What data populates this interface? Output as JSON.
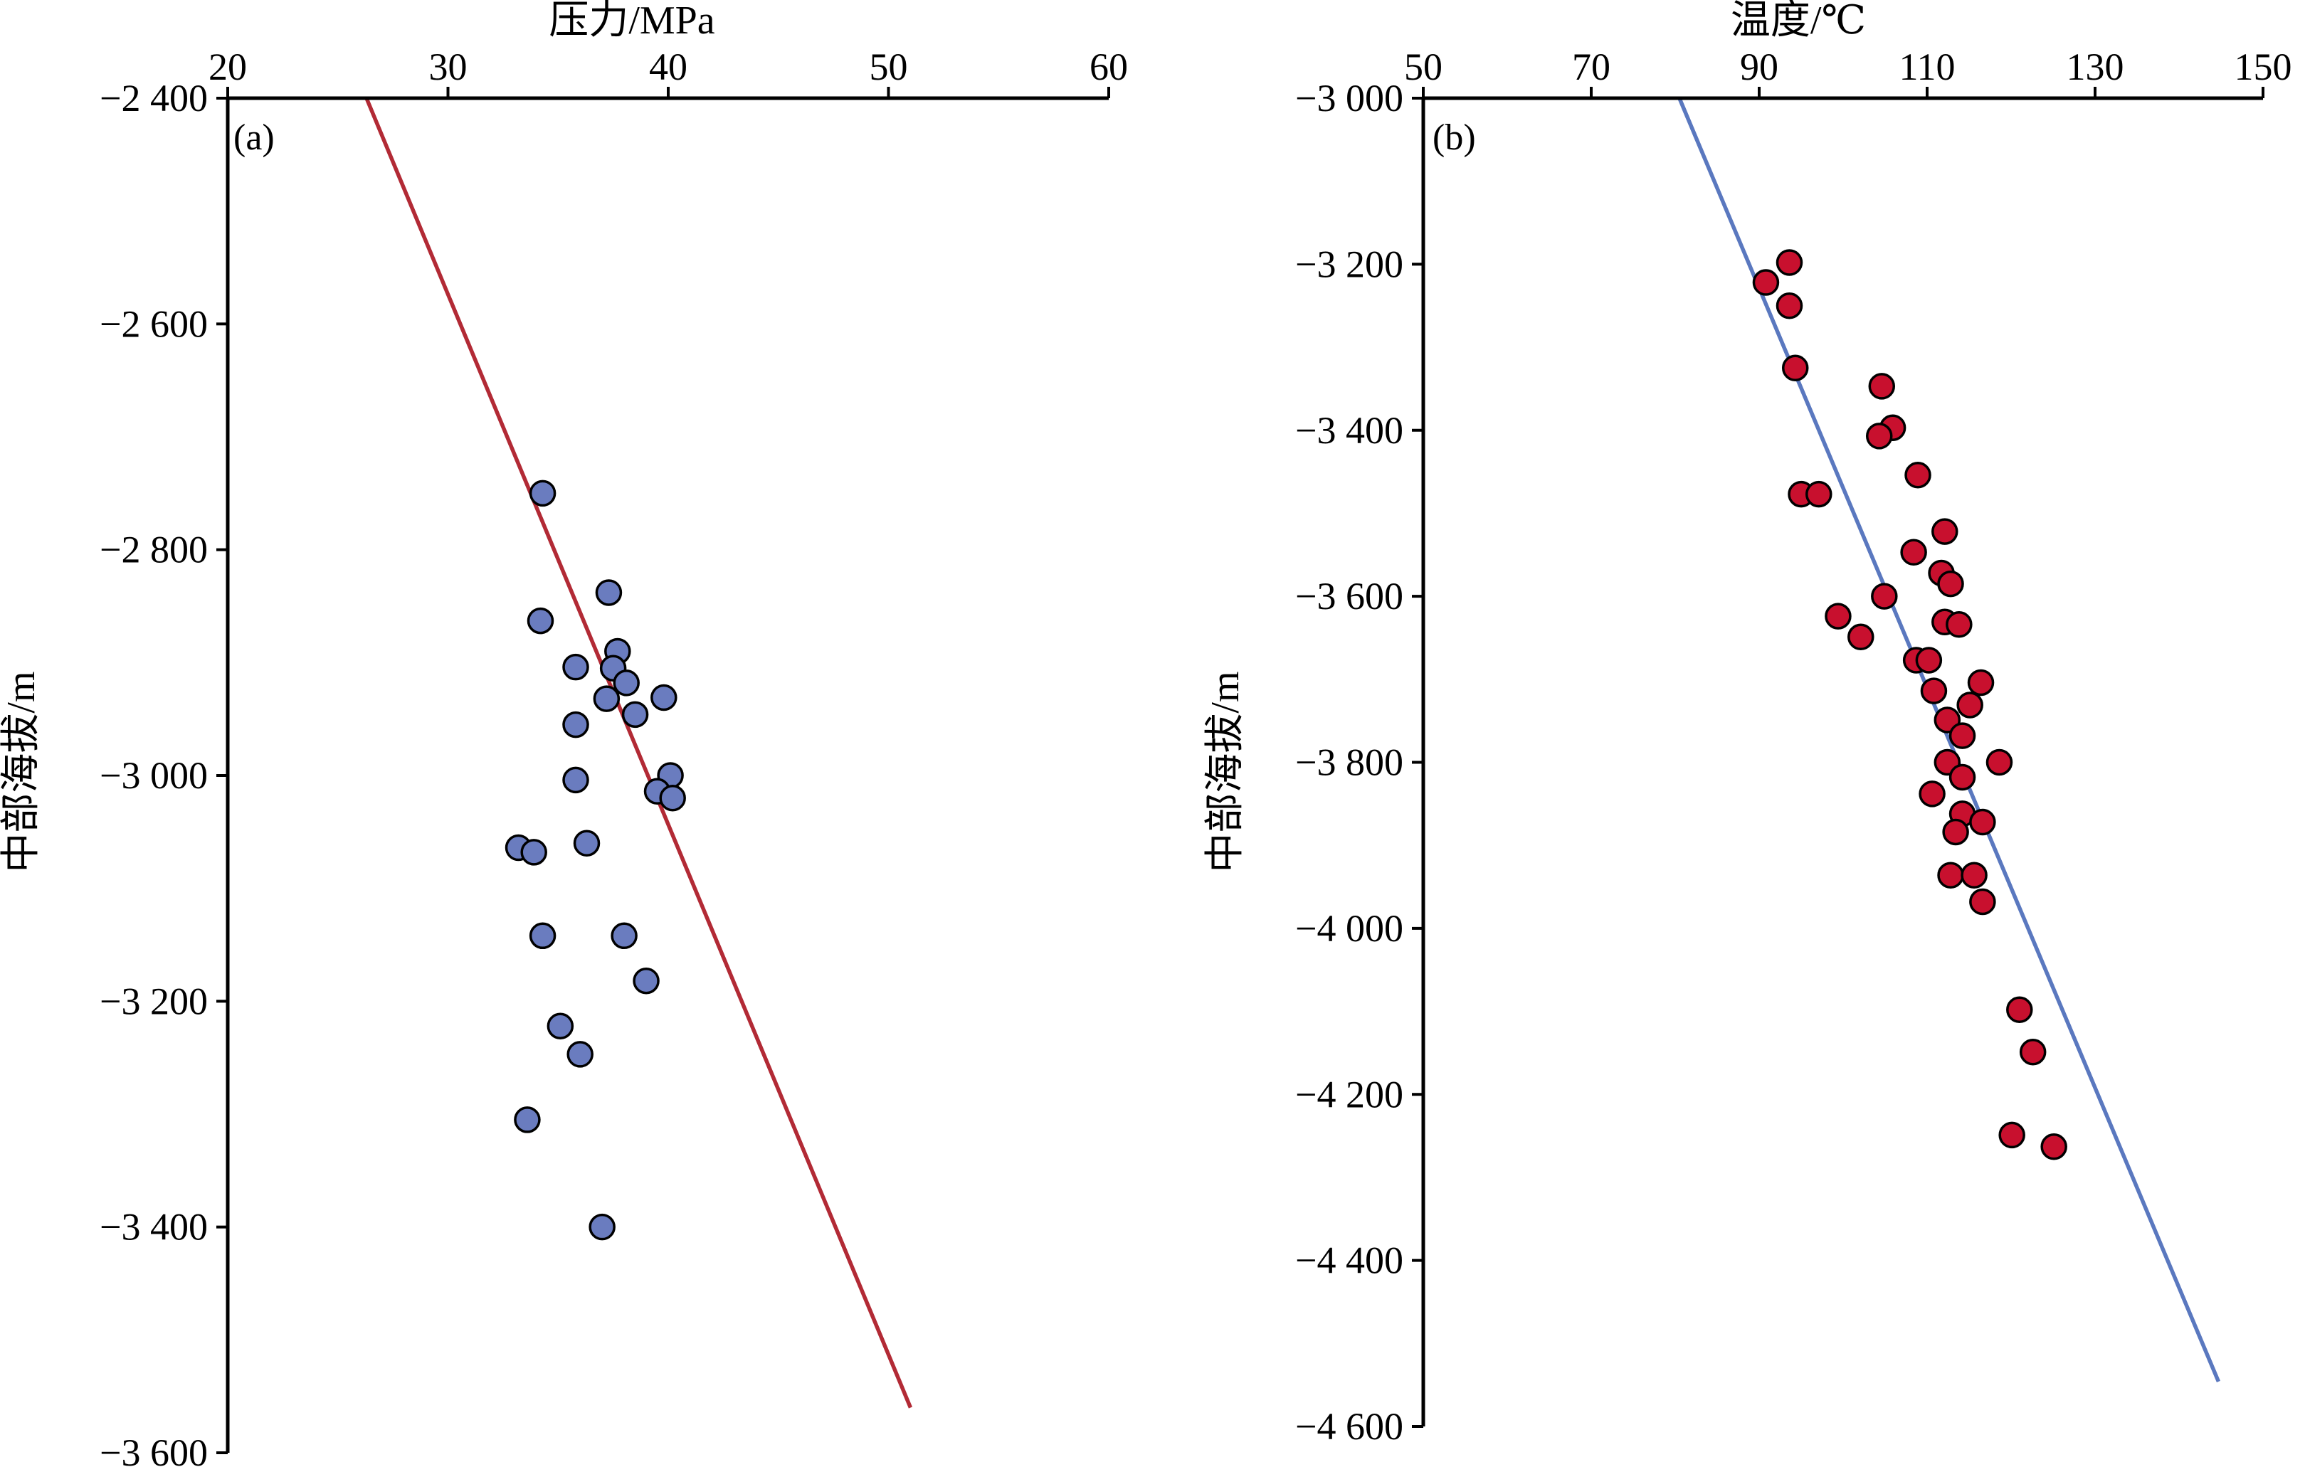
{
  "chart_data": [
    {
      "type": "scatter",
      "panel_label": "(a)",
      "xlabel": "压力/MPa",
      "ylabel": "中部海拔/m",
      "x_axis_position": "top",
      "xlim": [
        20,
        60
      ],
      "ylim": [
        -3600,
        -2400
      ],
      "xticks": [
        20,
        30,
        40,
        50,
        60
      ],
      "xtick_labels": [
        "20",
        "30",
        "40",
        "50",
        "60"
      ],
      "yticks": [
        -2400,
        -2600,
        -2800,
        -3000,
        -3200,
        -3400,
        -3600
      ],
      "ytick_labels": [
        "−2 400",
        "−2 600",
        "−2 800",
        "−3 000",
        "−3 200",
        "−3 400",
        "−3 600"
      ],
      "grid": false,
      "marker_color": "#6a7cbf",
      "line_color": "#b22a35",
      "points": [
        {
          "x": 34.3,
          "y": -2750
        },
        {
          "x": 37.3,
          "y": -2838
        },
        {
          "x": 34.2,
          "y": -2863
        },
        {
          "x": 37.7,
          "y": -2890
        },
        {
          "x": 35.8,
          "y": -2904
        },
        {
          "x": 37.5,
          "y": -2905
        },
        {
          "x": 38.1,
          "y": -2918
        },
        {
          "x": 37.2,
          "y": -2932
        },
        {
          "x": 39.8,
          "y": -2931
        },
        {
          "x": 38.5,
          "y": -2946
        },
        {
          "x": 35.8,
          "y": -2955
        },
        {
          "x": 40.1,
          "y": -3000
        },
        {
          "x": 35.8,
          "y": -3004
        },
        {
          "x": 39.5,
          "y": -3014
        },
        {
          "x": 40.2,
          "y": -3020
        },
        {
          "x": 36.3,
          "y": -3060
        },
        {
          "x": 33.2,
          "y": -3064
        },
        {
          "x": 33.9,
          "y": -3068
        },
        {
          "x": 34.3,
          "y": -3142
        },
        {
          "x": 38.0,
          "y": -3142
        },
        {
          "x": 39.0,
          "y": -3182
        },
        {
          "x": 35.1,
          "y": -3222
        },
        {
          "x": 36.0,
          "y": -3247
        },
        {
          "x": 33.6,
          "y": -3305
        },
        {
          "x": 37.0,
          "y": -3400
        }
      ],
      "trend_line": {
        "x": [
          26.3,
          51.0
        ],
        "y": [
          -2400,
          -3560
        ]
      }
    },
    {
      "type": "scatter",
      "panel_label": "(b)",
      "xlabel": "温度/℃",
      "ylabel": "中部海拔/m",
      "x_axis_position": "top",
      "xlim": [
        50,
        150
      ],
      "ylim": [
        -4600,
        -3000
      ],
      "xticks": [
        50,
        70,
        90,
        110,
        130,
        150
      ],
      "xtick_labels": [
        "50",
        "70",
        "90",
        "110",
        "130",
        "150"
      ],
      "yticks": [
        -3000,
        -3200,
        -3400,
        -3600,
        -3800,
        -4000,
        -4200,
        -4400,
        -4600
      ],
      "ytick_labels": [
        "−3 000",
        "−3 200",
        "−3 400",
        "−3 600",
        "−3 800",
        "−4 000",
        "−4 200",
        "−4 400",
        "−4 600"
      ],
      "grid": false,
      "marker_color": "#c8102e",
      "line_color": "#5a78bf",
      "points": [
        {
          "x": 93.6,
          "y": -3198
        },
        {
          "x": 90.8,
          "y": -3222
        },
        {
          "x": 93.6,
          "y": -3250
        },
        {
          "x": 94.3,
          "y": -3325
        },
        {
          "x": 104.6,
          "y": -3347
        },
        {
          "x": 105.9,
          "y": -3397
        },
        {
          "x": 104.3,
          "y": -3407
        },
        {
          "x": 108.9,
          "y": -3454
        },
        {
          "x": 95.0,
          "y": -3477
        },
        {
          "x": 97.1,
          "y": -3477
        },
        {
          "x": 112.1,
          "y": -3522
        },
        {
          "x": 108.4,
          "y": -3547
        },
        {
          "x": 111.7,
          "y": -3572
        },
        {
          "x": 112.8,
          "y": -3585
        },
        {
          "x": 104.9,
          "y": -3600
        },
        {
          "x": 99.4,
          "y": -3624
        },
        {
          "x": 112.1,
          "y": -3631
        },
        {
          "x": 113.8,
          "y": -3634
        },
        {
          "x": 102.1,
          "y": -3649
        },
        {
          "x": 108.7,
          "y": -3677
        },
        {
          "x": 110.2,
          "y": -3677
        },
        {
          "x": 116.4,
          "y": -3704
        },
        {
          "x": 110.8,
          "y": -3714
        },
        {
          "x": 115.1,
          "y": -3731
        },
        {
          "x": 112.4,
          "y": -3749
        },
        {
          "x": 114.2,
          "y": -3768
        },
        {
          "x": 112.4,
          "y": -3800
        },
        {
          "x": 118.6,
          "y": -3800
        },
        {
          "x": 114.2,
          "y": -3818
        },
        {
          "x": 110.6,
          "y": -3838
        },
        {
          "x": 114.2,
          "y": -3862
        },
        {
          "x": 116.6,
          "y": -3872
        },
        {
          "x": 113.4,
          "y": -3884
        },
        {
          "x": 112.8,
          "y": -3936
        },
        {
          "x": 115.6,
          "y": -3936
        },
        {
          "x": 116.6,
          "y": -3968
        },
        {
          "x": 121.0,
          "y": -4098
        },
        {
          "x": 122.6,
          "y": -4149
        },
        {
          "x": 120.1,
          "y": -4249
        },
        {
          "x": 125.1,
          "y": -4263
        }
      ],
      "trend_line": {
        "x": [
          80.5,
          144.7
        ],
        "y": [
          -3000,
          -4546
        ]
      }
    }
  ]
}
